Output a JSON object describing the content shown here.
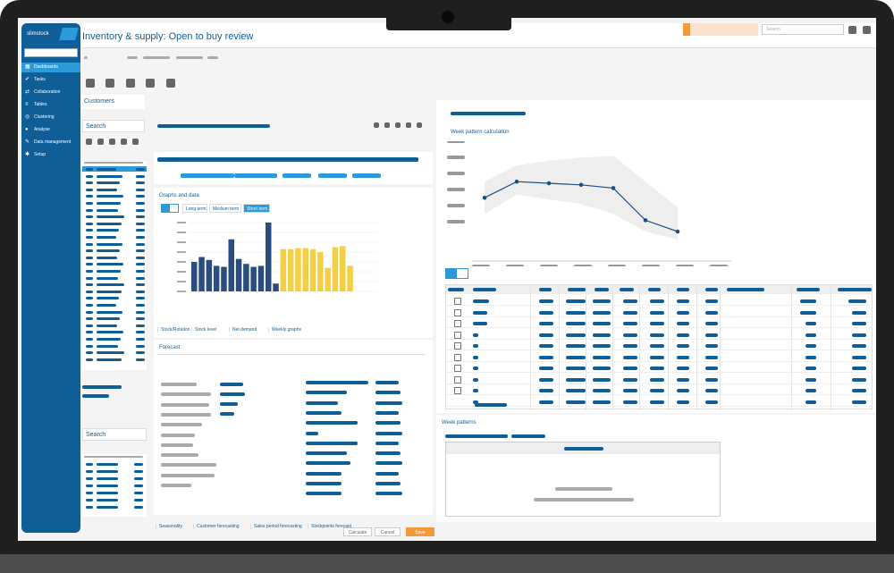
{
  "app": {
    "title": "Inventory & supply: Open to buy review",
    "logo_text": "slimstock"
  },
  "sidebar": {
    "items": [
      {
        "label": "Dashboards",
        "icon": "dashboard-icon",
        "active": true
      },
      {
        "label": "Tasks",
        "icon": "check-icon"
      },
      {
        "label": "Collaboration",
        "icon": "collab-icon"
      },
      {
        "label": "Tables",
        "icon": "list-icon"
      },
      {
        "label": "Clustering",
        "icon": "cluster-icon"
      },
      {
        "label": "Analyse",
        "icon": "analyse-icon"
      },
      {
        "label": "Data management",
        "icon": "wrench-icon"
      },
      {
        "label": "Setup",
        "icon": "gear-icon"
      }
    ]
  },
  "header": {
    "search_placeholder": "Search"
  },
  "left_panel": {
    "customers_label": "Customers",
    "search_label": "Search",
    "search2_label": "Search"
  },
  "graphs": {
    "section_label": "Graphs and data",
    "tabs": [
      "Long term",
      "Medium term",
      "Short term"
    ],
    "bottom_tabs": [
      "Stock/Rotation",
      "Stock level",
      "Net demand",
      "Weekly graphs"
    ]
  },
  "forecast": {
    "section_label": "Forecast",
    "links": [
      "Seasonality",
      "Customer forecasting",
      "Sales period forecasting",
      "Stockpoints forecast"
    ]
  },
  "week_pattern": {
    "section_label": "Week pattern calculation",
    "patterns_label": "Week patterns"
  },
  "footer": {
    "buttons": [
      "Calculate",
      "Cancel",
      "Save"
    ]
  },
  "colors": {
    "primary": "#0f5e98",
    "accent": "#2c9ad8",
    "orange": "#f59a3b",
    "bar_yellow": "#f4cf45"
  },
  "chart_data": [
    {
      "type": "bar",
      "series": [
        {
          "color": "#2b4c7e",
          "values": [
            3,
            3.5,
            3.2,
            2.6,
            2.5,
            5.3,
            3.3,
            2.8,
            2.5,
            2.6,
            7.0,
            0.8
          ]
        },
        {
          "color": "#f4cf45",
          "values": [
            4.3,
            4.3,
            4.4,
            4.4,
            4.3,
            4.0,
            2.4,
            4.5,
            4.6,
            2.6
          ]
        }
      ]
    },
    {
      "type": "line",
      "values": [
        2.6,
        3.6,
        3.5,
        3.4,
        3.2,
        1.2,
        0.5
      ],
      "band_upper": [
        3.6,
        4.6,
        4.9,
        5.1,
        5.2,
        3.6,
        2.0
      ],
      "band_lower": [
        1.6,
        2.8,
        2.5,
        2.2,
        1.6,
        0.5,
        0.0
      ]
    }
  ]
}
